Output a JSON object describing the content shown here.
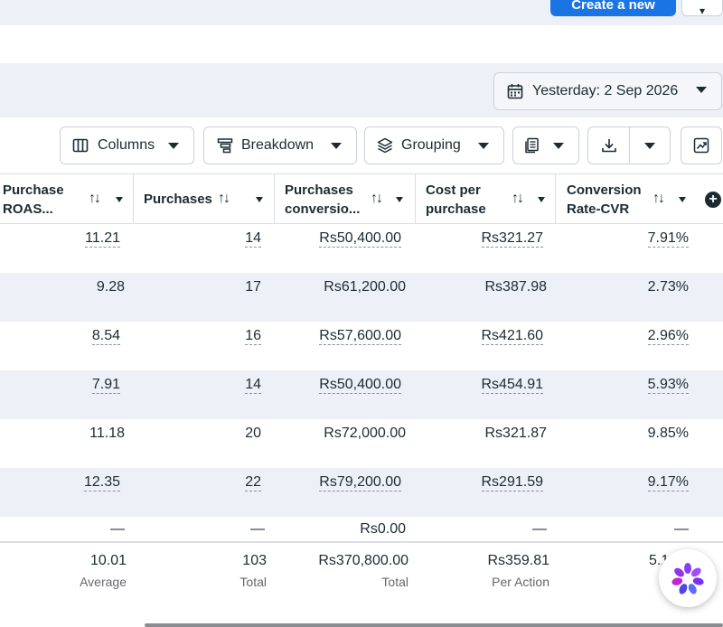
{
  "top": {
    "create_label": "Create a new",
    "more_label": "▾"
  },
  "date_picker": {
    "label": "Yesterday: 2 Sep 2026"
  },
  "toolbar": {
    "columns_label": "Columns",
    "breakdown_label": "Breakdown",
    "grouping_label": "Grouping"
  },
  "table": {
    "headers": [
      {
        "line1": "Purchase",
        "line2": "ROAS..."
      },
      {
        "line1": "Purchases",
        "line2": ""
      },
      {
        "line1": "Purchases",
        "line2": "conversio..."
      },
      {
        "line1": "Cost per",
        "line2": "purchase"
      },
      {
        "line1": "Conversion",
        "line2": "Rate-CVR"
      }
    ],
    "sort_glyph": "↑↓",
    "rows": [
      {
        "roas": "11.21",
        "purchases": "14",
        "conv_value": "Rs50,400.00",
        "cost": "Rs321.27",
        "cvr": "7.91%"
      },
      {
        "roas": "9.28",
        "purchases": "17",
        "conv_value": "Rs61,200.00",
        "cost": "Rs387.98",
        "cvr": "2.73%"
      },
      {
        "roas": "8.54",
        "purchases": "16",
        "conv_value": "Rs57,600.00",
        "cost": "Rs421.60",
        "cvr": "2.96%"
      },
      {
        "roas": "7.91",
        "purchases": "14",
        "conv_value": "Rs50,400.00",
        "cost": "Rs454.91",
        "cvr": "5.93%"
      },
      {
        "roas": "11.18",
        "purchases": "20",
        "conv_value": "Rs72,000.00",
        "cost": "Rs321.87",
        "cvr": "9.85%"
      },
      {
        "roas": "12.35",
        "purchases": "22",
        "conv_value": "Rs79,200.00",
        "cost": "Rs291.59",
        "cvr": "9.17%"
      },
      {
        "roas": "—",
        "purchases": "—",
        "conv_value": "Rs0.00",
        "cost": "—",
        "cvr": "—"
      }
    ],
    "totals": {
      "roas": "10.01",
      "roas_label": "Average",
      "purchases": "103",
      "purchases_label": "Total",
      "conv_value": "Rs370,800.00",
      "conv_value_label": "Total",
      "cost": "Rs359.81",
      "cost_label": "Per Action",
      "cvr": "5.1"
    }
  },
  "colors": {
    "accent": "#1b74e4",
    "band": "#eef0f7",
    "assistant_purple": "#8b3dff"
  },
  "icons": [
    "calendar-icon",
    "columns-icon",
    "breakdown-icon",
    "grouping-icon",
    "report-icon",
    "download-icon",
    "chart-icon",
    "add-column-icon",
    "assistant-icon"
  ]
}
